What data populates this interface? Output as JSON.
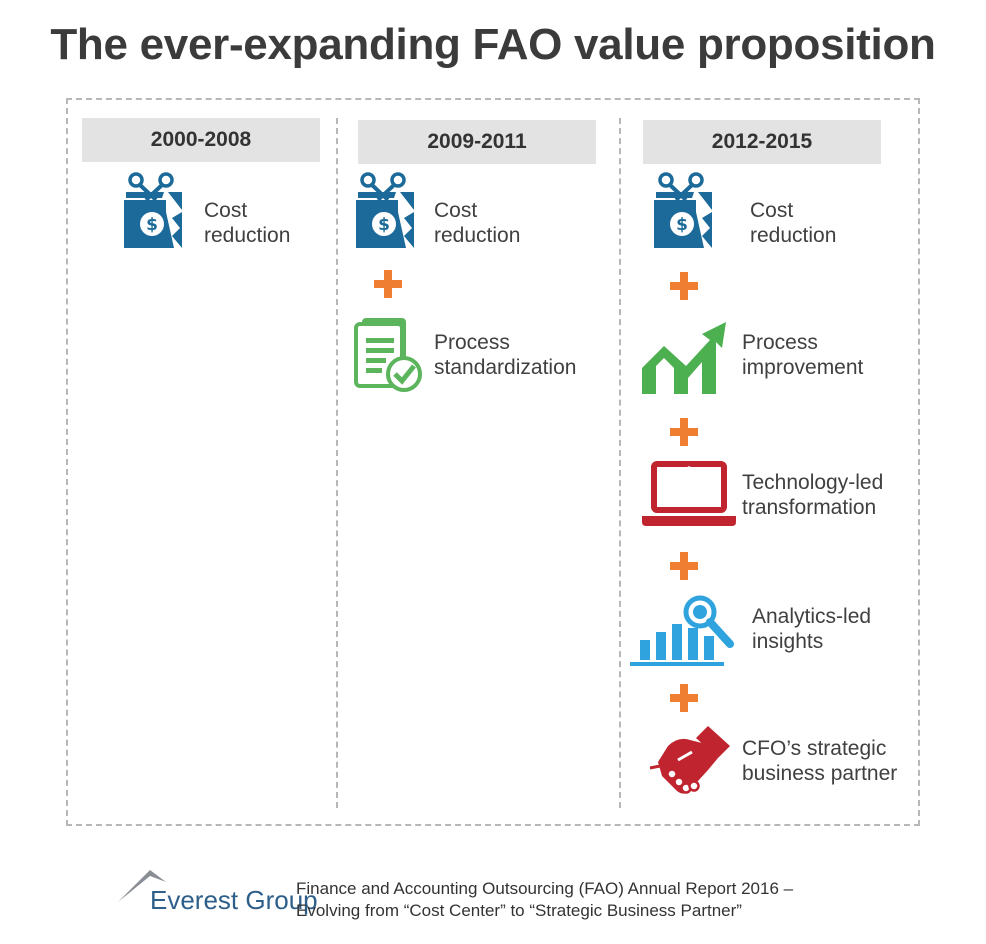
{
  "title": "The ever-expanding FAO value proposition",
  "columns": [
    {
      "period": "2000-2008",
      "items": [
        {
          "icon": "cost-reduction-icon",
          "line1": "Cost",
          "line2": "reduction"
        }
      ]
    },
    {
      "period": "2009-2011",
      "items": [
        {
          "icon": "cost-reduction-icon",
          "line1": "Cost",
          "line2": "reduction"
        },
        {
          "icon": "process-standardization-icon",
          "line1": "Process",
          "line2": "standardization"
        }
      ]
    },
    {
      "period": "2012-2015",
      "items": [
        {
          "icon": "cost-reduction-icon",
          "line1": "Cost",
          "line2": "reduction"
        },
        {
          "icon": "process-improvement-icon",
          "line1": "Process",
          "line2": "improvement"
        },
        {
          "icon": "laptop-icon",
          "line1": "Technology-led",
          "line2": "transformation"
        },
        {
          "icon": "analytics-icon",
          "line1": "Analytics-led",
          "line2": "insights"
        },
        {
          "icon": "handshake-icon",
          "line1": "CFO’s strategic",
          "line2": "business partner"
        }
      ]
    }
  ],
  "logo": {
    "text": "Everest Group"
  },
  "footer": {
    "line1": "Finance and Accounting Outsourcing (FAO) Annual Report 2016 –",
    "line2": "Evolving from “Cost Center” to “Strategic Business Partner”"
  },
  "colors": {
    "cost": "#1b6a9a",
    "standardization": "#5cb45c",
    "improvement": "#4caf50",
    "technology": "#c0242f",
    "analytics": "#2fa3de",
    "handshake": "#c0242f",
    "plus": "#ef7d32"
  }
}
